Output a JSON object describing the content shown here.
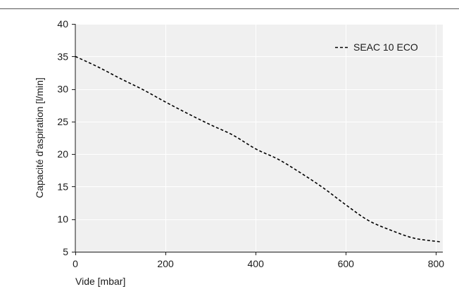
{
  "chart_data": {
    "type": "line",
    "title": "",
    "xlabel": "Vide [mbar]",
    "ylabel": "Capacité d'aspiration [l/min]",
    "xlim": [
      0,
      815
    ],
    "ylim": [
      5,
      40
    ],
    "x_ticks": [
      0,
      200,
      400,
      600,
      800
    ],
    "y_ticks": [
      5,
      10,
      15,
      20,
      25,
      30,
      35,
      40
    ],
    "x_tick_labels": [
      "0",
      "200",
      "400",
      "600",
      "800"
    ],
    "y_tick_labels": [
      "5",
      "10",
      "15",
      "20",
      "25",
      "30",
      "35",
      "40"
    ],
    "grid": true,
    "legend_position": "top-right",
    "series": [
      {
        "name": "SEAC 10 ECO",
        "line_style": "dashed",
        "color": "#000000",
        "x": [
          0,
          50,
          100,
          150,
          200,
          250,
          300,
          350,
          400,
          450,
          500,
          550,
          600,
          650,
          700,
          750,
          800,
          812
        ],
        "y": [
          35,
          33.4,
          31.6,
          29.9,
          28,
          26.2,
          24.5,
          22.9,
          20.8,
          19.2,
          17.1,
          14.8,
          12.2,
          9.8,
          8.3,
          7.1,
          6.6,
          6.5
        ]
      }
    ]
  },
  "colors": {
    "plot_background": "#f0f0f0",
    "grid": "#ffffff",
    "axis": "#1a1a1a",
    "top_rule": "#555555"
  }
}
